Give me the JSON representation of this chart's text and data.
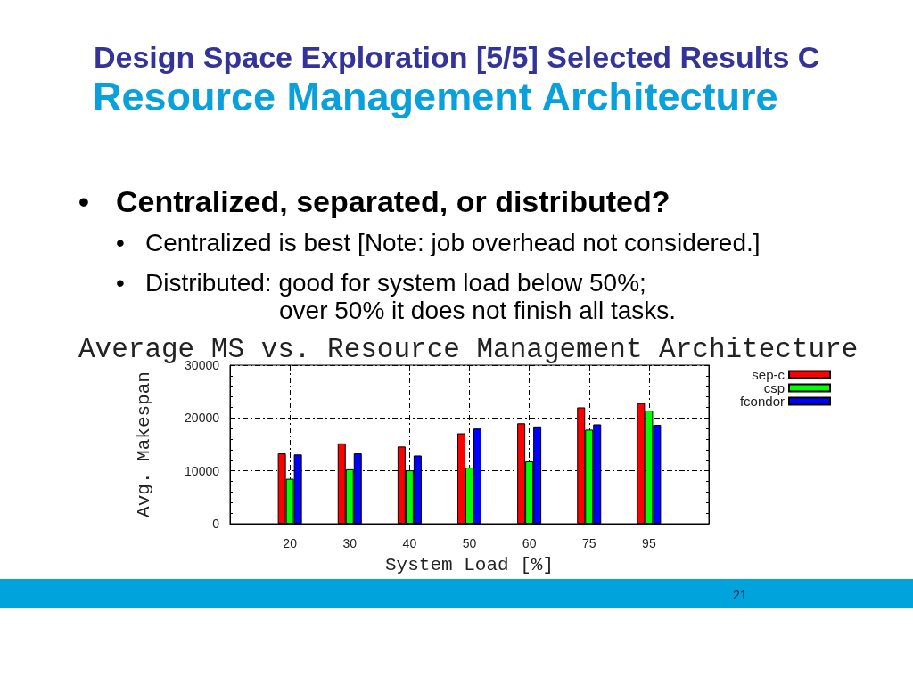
{
  "chart_data": {
    "type": "bar",
    "title": "Average MS vs. Resource Management Architecture",
    "xlabel": "System Load [%]",
    "ylabel": "Avg. Makespan",
    "annotations": [
      "Design Space Exploration [5/5] Selected Results C",
      "Resource Management Architecture",
      "•\tCentralized, separated, or distributed?",
      "•\tCentralized is best [Note: job overhead not considered.]",
      "•\tDistributed: good for system load below 50%;\nover 50% it does not finish all tasks.",
      "21"
    ],
    "categories": [
      "20",
      "30",
      "40",
      "50",
      "60",
      "75",
      "95"
    ],
    "series": [
      {
        "name": "sep-c",
        "color": "#ff0000",
        "values": [
          13300,
          15200,
          14600,
          17100,
          19000,
          22000,
          22800
        ]
      },
      {
        "name": "csp",
        "color": "#00ff00",
        "values": [
          8500,
          10300,
          10100,
          10600,
          11800,
          17800,
          21400
        ]
      },
      {
        "name": "fcondor",
        "color": "#0000ff",
        "values": [
          13100,
          13300,
          12900,
          18000,
          18400,
          18800,
          18700
        ]
      }
    ],
    "ylim": [
      0,
      30000
    ],
    "yticks": [
      0,
      10000,
      20000,
      30000
    ],
    "grid": true,
    "legend": "top right"
  }
}
